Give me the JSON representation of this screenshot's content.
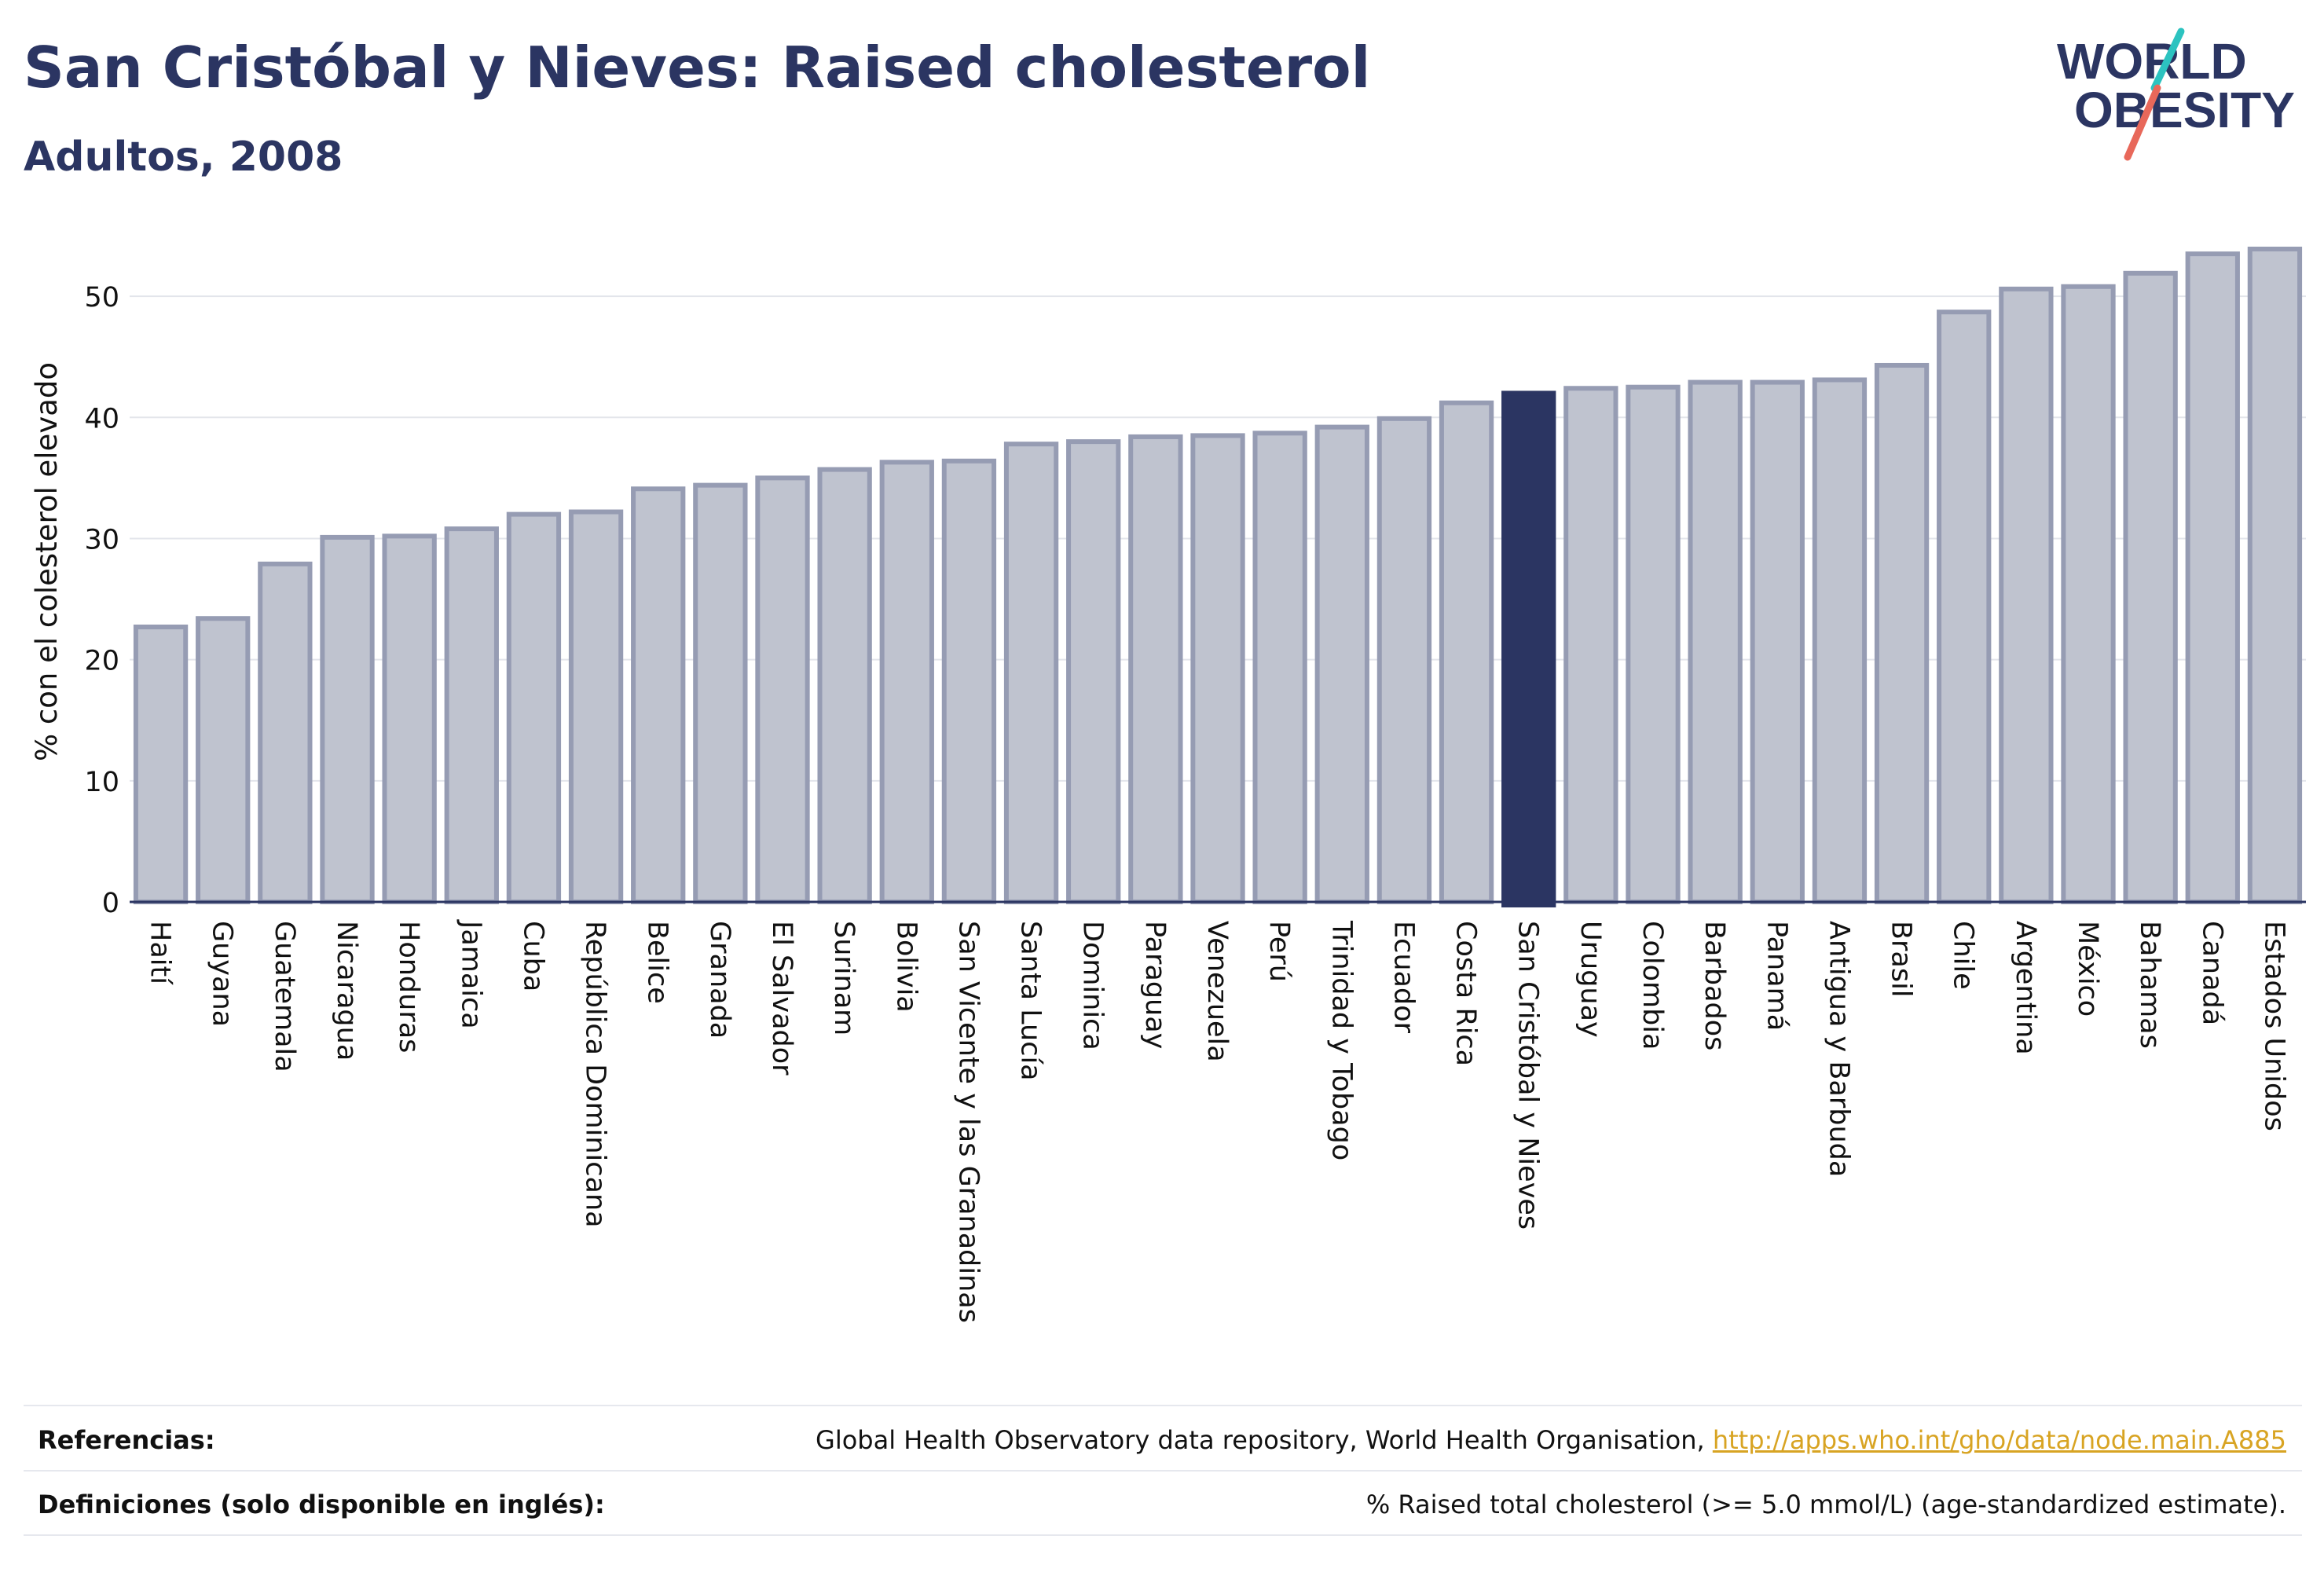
{
  "header": {
    "title": "San Cristóbal y Nieves: Raised cholesterol",
    "subtitle": "Adultos, 2008"
  },
  "logo": {
    "line1": "WORLD",
    "line2": "OBESITY",
    "accent_colors": [
      "#2cc3c0",
      "#e8685a"
    ],
    "text_color": "#2b3562"
  },
  "colors": {
    "bar": "#bfc3cf",
    "bar_stroke": "#969cb3",
    "highlight": "#2b3562",
    "text": "#2b3562",
    "grid": "#e3e5eb",
    "link": "#d8a423"
  },
  "chart_data": {
    "type": "bar",
    "title": "San Cristóbal y Nieves: Raised cholesterol",
    "subtitle": "Adultos, 2008",
    "xlabel": "",
    "ylabel": "% con el colesterol elevado",
    "ylim": [
      0,
      55
    ],
    "yticks": [
      0,
      10,
      20,
      30,
      40,
      50
    ],
    "grid": true,
    "highlight": "San Cristóbal y Nieves",
    "categories": [
      "Haití",
      "Guyana",
      "Guatemala",
      "Nicaragua",
      "Honduras",
      "Jamaica",
      "Cuba",
      "República Dominicana",
      "Belice",
      "Granada",
      "El Salvador",
      "Surinam",
      "Bolivia",
      "San Vicente y las Granadinas",
      "Santa Lucía",
      "Dominica",
      "Paraguay",
      "Venezuela",
      "Perú",
      "Trinidad y Tobago",
      "Ecuador",
      "Costa Rica",
      "San Cristóbal y Nieves",
      "Uruguay",
      "Colombia",
      "Barbados",
      "Panamá",
      "Antigua y Barbuda",
      "Brasil",
      "Chile",
      "Argentina",
      "México",
      "Bahamas",
      "Canadá",
      "Estados Unidos"
    ],
    "values": [
      22.7,
      23.4,
      27.9,
      30.1,
      30.2,
      30.8,
      32.0,
      32.2,
      34.1,
      34.4,
      35.0,
      35.7,
      36.3,
      36.4,
      37.8,
      38.0,
      38.4,
      38.5,
      38.7,
      39.2,
      39.9,
      41.2,
      42.0,
      42.4,
      42.5,
      42.9,
      42.9,
      43.1,
      44.3,
      48.7,
      50.6,
      50.8,
      51.9,
      53.5,
      53.9
    ]
  },
  "footer": {
    "references_label": "Referencias:",
    "references_text": "Global Health Observatory data repository, World Health Organisation, ",
    "references_link": "http://apps.who.int/gho/data/node.main.A885",
    "definitions_label": "Definiciones (solo disponible en inglés):",
    "definitions_text": "% Raised total cholesterol (>= 5.0 mmol/L) (age-standardized estimate)."
  }
}
